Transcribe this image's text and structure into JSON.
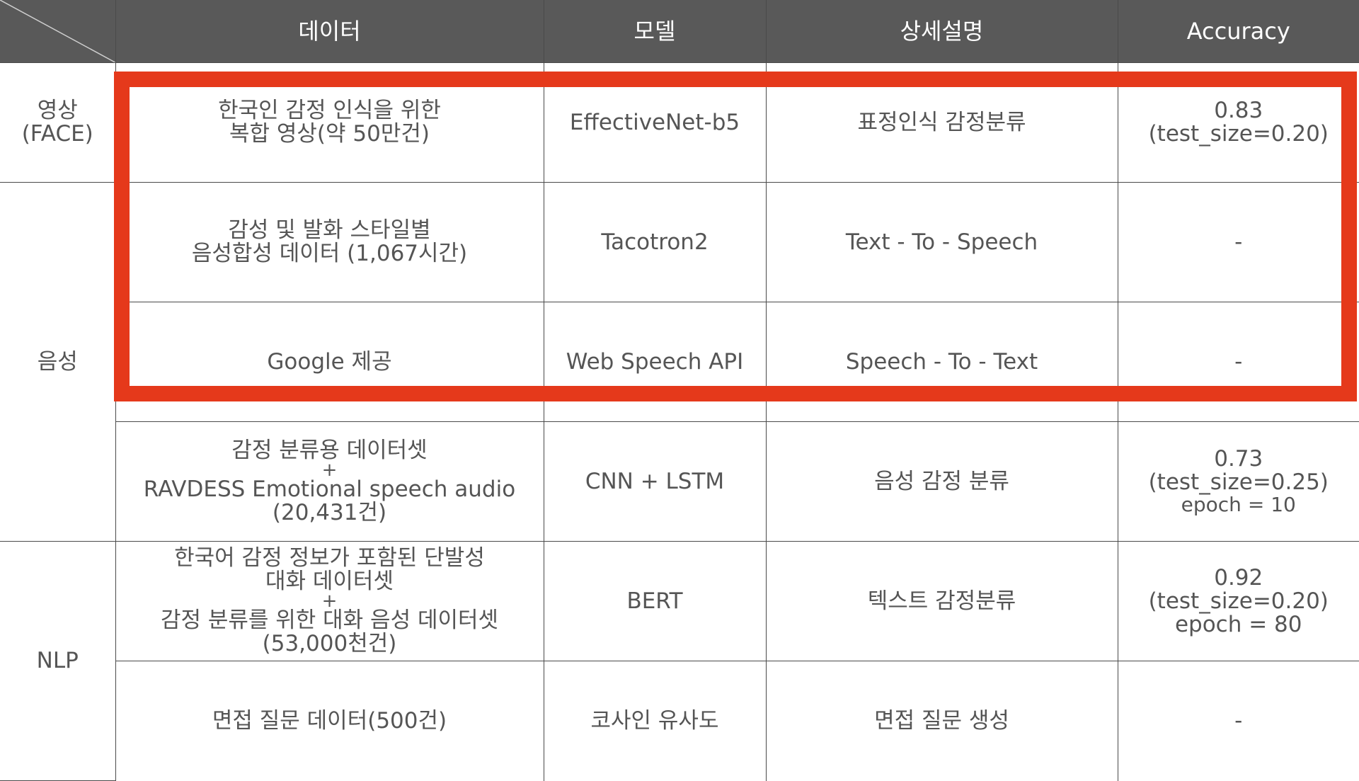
{
  "header": {
    "data": "데이터",
    "model": "모델",
    "description": "상세설명",
    "accuracy": "Accuracy"
  },
  "categories": {
    "video_line1": "영상",
    "video_line2": "(FACE)",
    "audio": "음성",
    "nlp": "NLP"
  },
  "rows": [
    {
      "data_line1": "한국인 감정 인식을 위한",
      "data_line2": "복합 영상(약 50만건)",
      "model": "EffectiveNet-b5",
      "description": "표정인식 감정분류",
      "accuracy_line1": "0.83",
      "accuracy_line2": "(test_size=0.20)"
    },
    {
      "data_line1": "감성 및 발화 스타일별",
      "data_line2": "음성합성 데이터 (1,067시간)",
      "model": "Tacotron2",
      "description": "Text - To - Speech",
      "accuracy": "-"
    },
    {
      "data": "Google 제공",
      "model": "Web Speech API",
      "description": "Speech - To - Text",
      "accuracy": "-"
    },
    {
      "data_line1": "감정 분류용 데이터셋",
      "data_plus": "+",
      "data_line2": "RAVDESS Emotional speech audio",
      "data_line3": "(20,431건)",
      "model": "CNN + LSTM",
      "description": "음성 감정 분류",
      "accuracy_line1": "0.73",
      "accuracy_line2": "(test_size=0.25)",
      "accuracy_line3": "epoch = 10"
    },
    {
      "data_line1": "한국어 감정 정보가 포함된 단발성",
      "data_line2": "대화 데이터셋",
      "data_plus": "+",
      "data_line3": "감정  분류를  위한 대화 음성 데이터셋",
      "data_line4": "(53,000천건)",
      "model": "BERT",
      "description": "텍스트  감정분류",
      "accuracy_line1": "0.92",
      "accuracy_line2": "(test_size=0.20)",
      "accuracy_line3": "epoch = 80"
    },
    {
      "data": "면접 질문 데이터(500건)",
      "model": "코사인 유사도",
      "description": "면접 질문 생성",
      "accuracy": "-"
    }
  ],
  "colors": {
    "header_bg": "#595959",
    "highlight": "#e5391b",
    "text": "#555555"
  }
}
